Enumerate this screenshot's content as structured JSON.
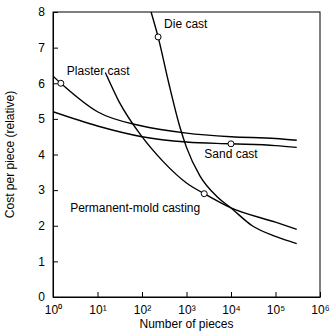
{
  "chart_data": {
    "type": "line",
    "x_label": "Number of pieces",
    "y_label": "Cost per piece (relative)",
    "log": "x",
    "xlim": [
      1,
      1000000
    ],
    "xticks": [
      {
        "value": 1,
        "label": "10⁰"
      },
      {
        "value": 10,
        "label": "10¹"
      },
      {
        "value": 100,
        "label": "10²"
      },
      {
        "value": 1000,
        "label": "10³"
      },
      {
        "value": 10000,
        "label": "10⁴"
      },
      {
        "value": 100000,
        "label": "10⁵"
      },
      {
        "value": 1000000,
        "label": "10⁶"
      }
    ],
    "ylim": [
      0,
      8
    ],
    "yticks": [
      0,
      1,
      2,
      3,
      4,
      5,
      6,
      7,
      8
    ],
    "series": [
      {
        "name": "Die cast",
        "color": "#000000",
        "x": [
          160,
          230,
          400,
          700,
          1000,
          2000,
          5000,
          10000,
          30000,
          100000,
          300000
        ],
        "values": [
          8,
          7.3,
          6,
          4.8,
          4.2,
          3.4,
          2.8,
          2.5,
          2.0,
          1.7,
          1.5
        ]
      },
      {
        "name": "Plaster cast",
        "color": "#000000",
        "x": [
          1,
          1.5,
          10,
          100,
          1000,
          10000,
          100000,
          300000
        ],
        "values": [
          6.2,
          6.0,
          5.2,
          4.8,
          4.6,
          4.5,
          4.45,
          4.4
        ]
      },
      {
        "name": "Sand cast",
        "color": "#000000",
        "x": [
          1,
          10,
          100,
          1000,
          10000,
          100000,
          300000
        ],
        "values": [
          5.2,
          4.8,
          4.5,
          4.35,
          4.3,
          4.25,
          4.2
        ]
      },
      {
        "name": "Permanent-mold casting",
        "color": "#000000",
        "x": [
          15,
          30,
          100,
          300,
          1000,
          2500,
          10000,
          100000,
          300000
        ],
        "values": [
          6.3,
          5.5,
          4.5,
          3.8,
          3.2,
          2.9,
          2.5,
          2.1,
          1.9
        ]
      }
    ]
  }
}
